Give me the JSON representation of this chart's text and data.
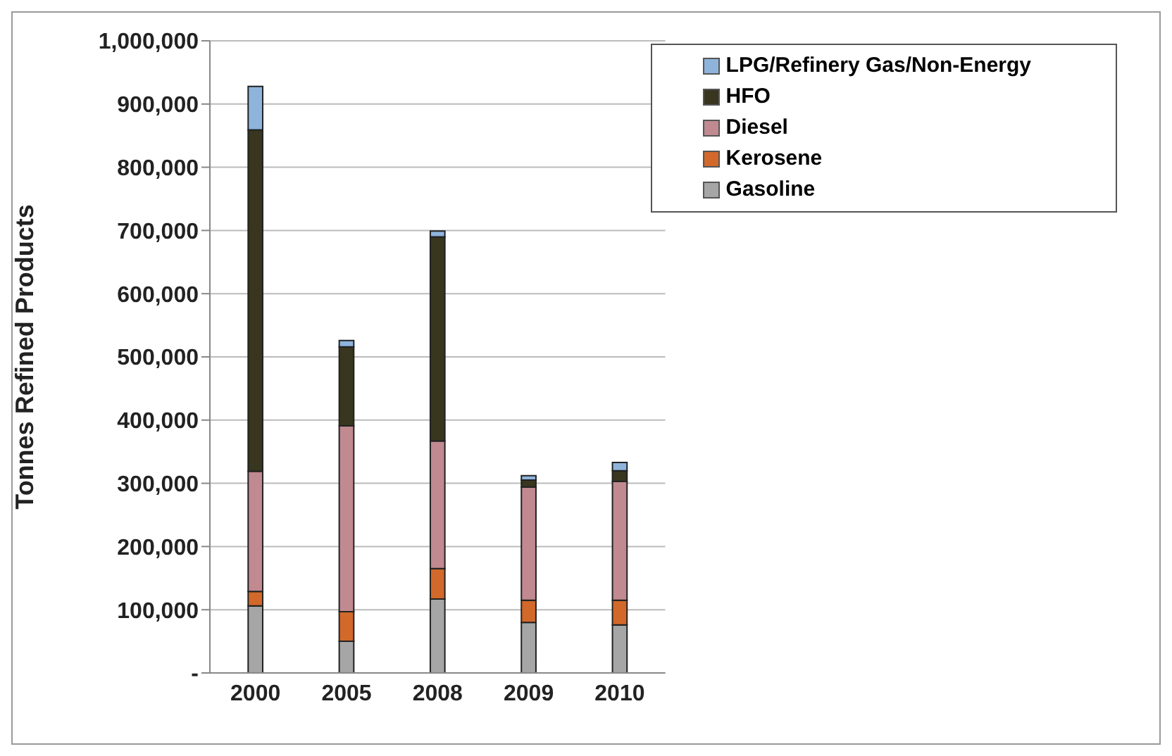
{
  "chart_data": {
    "type": "bar",
    "stacked": true,
    "ylabel": "Tonnes Refined Products",
    "categories": [
      "2000",
      "2005",
      "2008",
      "2009",
      "2010"
    ],
    "series": [
      {
        "name": "Gasoline",
        "color": "#a6a6a6",
        "values": [
          106000,
          50000,
          117000,
          80000,
          76000
        ]
      },
      {
        "name": "Kerosene",
        "color": "#d2692a",
        "values": [
          23000,
          47000,
          48000,
          35000,
          39000
        ]
      },
      {
        "name": "Diesel",
        "color": "#c08a90",
        "values": [
          190000,
          294000,
          202000,
          179000,
          188000
        ]
      },
      {
        "name": "HFO",
        "color": "#38361f",
        "values": [
          540000,
          125000,
          323000,
          11000,
          17000
        ]
      },
      {
        "name": "LPG/Refinery Gas/Non-Energy",
        "color": "#8fb4dc",
        "values": [
          69000,
          10000,
          9000,
          7000,
          13000
        ]
      }
    ],
    "ylim": [
      0,
      1000000
    ],
    "yticks": [
      {
        "value": 0,
        "label": "-"
      },
      {
        "value": 100000,
        "label": "100,000"
      },
      {
        "value": 200000,
        "label": "200,000"
      },
      {
        "value": 300000,
        "label": "300,000"
      },
      {
        "value": 400000,
        "label": "400,000"
      },
      {
        "value": 500000,
        "label": "500,000"
      },
      {
        "value": 600000,
        "label": "600,000"
      },
      {
        "value": 700000,
        "label": "700,000"
      },
      {
        "value": 800000,
        "label": "800,000"
      },
      {
        "value": 900000,
        "label": "900,000"
      },
      {
        "value": 1000000,
        "label": "1,000,000"
      }
    ],
    "grid": "y",
    "legend": "top right"
  }
}
